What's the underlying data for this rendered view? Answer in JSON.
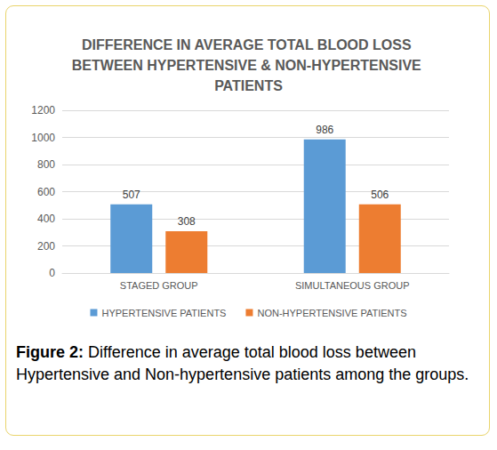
{
  "chart_data": {
    "type": "bar",
    "title": "DIFFERENCE IN AVERAGE TOTAL BLOOD LOSS BETWEEN HYPERTENSIVE & NON-HYPERTENSIVE PATIENTS",
    "caption": "Figure 2: Difference in average total blood loss between Hypertensive and Non-hypertensive patients among the groups.",
    "categories": [
      "STAGED GROUP",
      "SIMULTANEOUS GROUP"
    ],
    "series": [
      {
        "name": "HYPERTENSIVE PATIENTS",
        "color": "#5b9bd5",
        "values": [
          507,
          986
        ]
      },
      {
        "name": "NON-HYPERTENSIVE PATIENTS",
        "color": "#ed7d31",
        "values": [
          308,
          506
        ]
      }
    ],
    "ylim": [
      0,
      1200
    ],
    "yticks": [
      0,
      200,
      400,
      600,
      800,
      1000,
      1200
    ],
    "grid": true,
    "legend": "bottom",
    "data_labels": true
  }
}
